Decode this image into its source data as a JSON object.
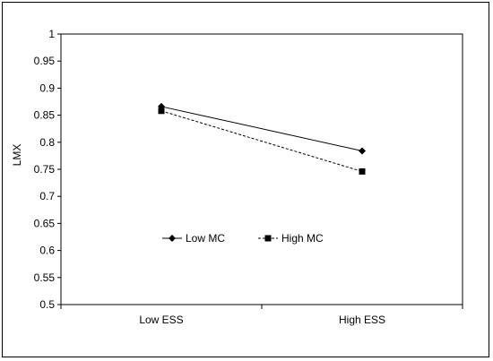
{
  "chart_data": {
    "type": "line",
    "title": "",
    "xlabel": "",
    "ylabel": "LMX",
    "categories": [
      "Low ESS",
      "High ESS"
    ],
    "ylim": [
      0.5,
      1
    ],
    "yticks": [
      "0.5",
      "0.55",
      "0.6",
      "0.65",
      "0.7",
      "0.75",
      "0.8",
      "0.85",
      "0.9",
      "0.95",
      "1"
    ],
    "grid": false,
    "legend_position": "center",
    "series": [
      {
        "name": "Low MC",
        "values": [
          0.866,
          0.784
        ],
        "line_style": "solid",
        "marker": "diamond",
        "color": "#000000"
      },
      {
        "name": "High MC",
        "values": [
          0.858,
          0.746
        ],
        "line_style": "dashed",
        "marker": "square",
        "color": "#000000"
      }
    ]
  }
}
